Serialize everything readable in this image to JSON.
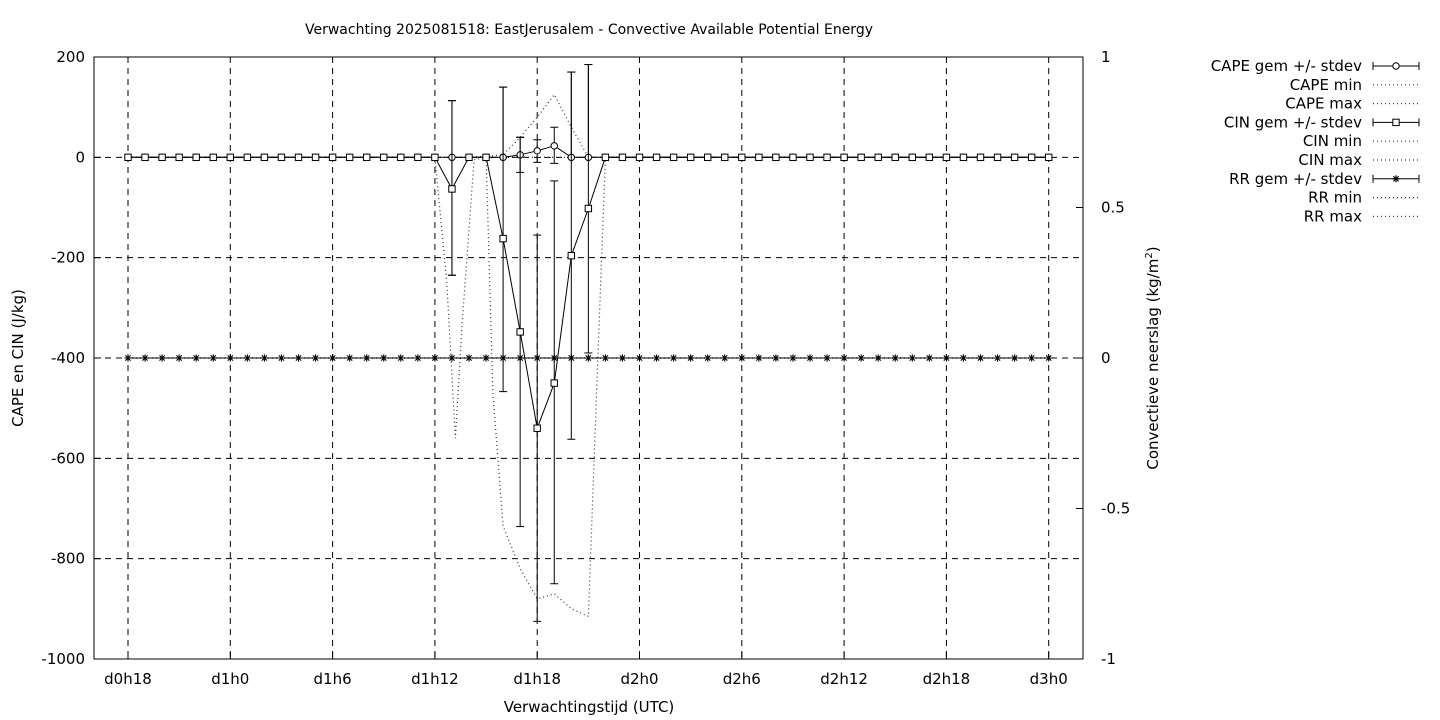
{
  "chart_data": {
    "type": "line",
    "title": "Verwachting 2025081518: EastJerusalem - Convective Available Potential Energy",
    "xlabel": "Verwachtingstijd (UTC)",
    "ylabel": "CAPE en CIN (J/kg)",
    "y2label_main": "Convectieve neerslag (kg/m",
    "y2label_sup": "2",
    "y2label_end": ")",
    "x_unit": "forecast hour (lead time from d0h18)",
    "xlim": [
      -2,
      56
    ],
    "ylim": [
      -1000,
      200
    ],
    "y2lim": [
      -1,
      1
    ],
    "grid": true,
    "legend_position": "outside-right",
    "x_ticks": [
      {
        "x": 0,
        "label": "d0h18"
      },
      {
        "x": 6,
        "label": "d1h0"
      },
      {
        "x": 12,
        "label": "d1h6"
      },
      {
        "x": 18,
        "label": "d1h12"
      },
      {
        "x": 24,
        "label": "d1h18"
      },
      {
        "x": 30,
        "label": "d2h0"
      },
      {
        "x": 36,
        "label": "d2h6"
      },
      {
        "x": 42,
        "label": "d2h12"
      },
      {
        "x": 48,
        "label": "d2h18"
      },
      {
        "x": 54,
        "label": "d3h0"
      }
    ],
    "y_ticks": [
      200,
      0,
      -200,
      -400,
      -600,
      -800,
      -1000
    ],
    "y2_ticks": [
      {
        "v": 1,
        "label": "1"
      },
      {
        "v": 0.5,
        "label": "0.5"
      },
      {
        "v": 0,
        "label": "0"
      },
      {
        "v": -0.5,
        "label": "-0.5"
      },
      {
        "v": -1,
        "label": "-1"
      }
    ],
    "x_hours": [
      0,
      1,
      2,
      3,
      4,
      5,
      6,
      7,
      8,
      9,
      10,
      11,
      12,
      13,
      14,
      15,
      16,
      17,
      18,
      19,
      20,
      21,
      22,
      23,
      24,
      25,
      26,
      27,
      28,
      29,
      30,
      31,
      32,
      33,
      34,
      35,
      36,
      37,
      38,
      39,
      40,
      41,
      42,
      43,
      44,
      45,
      46,
      47,
      48,
      49,
      50,
      51,
      52,
      53,
      54
    ],
    "series": [
      {
        "name": "CAPE gem +/- stdev",
        "marker": "circle",
        "axis": "y1",
        "err": [
          {
            "x": 19,
            "y": 0,
            "lo": -235,
            "hi": 113
          },
          {
            "x": 22,
            "y": 0,
            "lo": 0,
            "hi": 140
          },
          {
            "x": 23,
            "y": 5,
            "lo": -30,
            "hi": 40
          },
          {
            "x": 24,
            "y": 13,
            "lo": -10,
            "hi": 35
          },
          {
            "x": 25,
            "y": 23,
            "lo": -12,
            "hi": 60
          },
          {
            "x": 26,
            "y": 0,
            "lo": 0,
            "hi": 170
          },
          {
            "x": 27,
            "y": 0,
            "lo": 0,
            "hi": 185
          }
        ]
      },
      {
        "name": "CAPE min",
        "axis": "y1",
        "line": [
          [
            0,
            0
          ],
          [
            18,
            0
          ],
          [
            19,
            0
          ],
          [
            20,
            0
          ],
          [
            21,
            0
          ],
          [
            22,
            0
          ],
          [
            23,
            0
          ],
          [
            24,
            0
          ],
          [
            25,
            0
          ],
          [
            26,
            0
          ],
          [
            27,
            0
          ],
          [
            28,
            0
          ],
          [
            54,
            0
          ]
        ]
      },
      {
        "name": "CAPE max",
        "axis": "y1",
        "line": [
          [
            0,
            0
          ],
          [
            18,
            0
          ],
          [
            20,
            0
          ],
          [
            22,
            5
          ],
          [
            23,
            40
          ],
          [
            24,
            80
          ],
          [
            25,
            125
          ],
          [
            26,
            60
          ],
          [
            27,
            0
          ],
          [
            28,
            0
          ],
          [
            54,
            0
          ]
        ]
      },
      {
        "name": "CIN gem +/- stdev",
        "marker": "square",
        "axis": "y1",
        "err": [
          {
            "x": 19,
            "y": -63,
            "lo": -235,
            "hi": 113
          },
          {
            "x": 22,
            "y": -162,
            "lo": -467,
            "hi": 140
          },
          {
            "x": 23,
            "y": -348,
            "lo": -736,
            "hi": 40
          },
          {
            "x": 24,
            "y": -540,
            "lo": -925,
            "hi": -155
          },
          {
            "x": 25,
            "y": -450,
            "lo": -850,
            "hi": -47
          },
          {
            "x": 26,
            "y": -196,
            "lo": -562,
            "hi": 170
          },
          {
            "x": 27,
            "y": -102,
            "lo": -390,
            "hi": 185
          }
        ]
      },
      {
        "name": "CIN min",
        "axis": "y1",
        "line": [
          [
            0,
            0
          ],
          [
            18,
            0
          ],
          [
            18.7,
            -250
          ],
          [
            19.2,
            -560
          ],
          [
            19.6,
            -330
          ],
          [
            20.3,
            -5
          ],
          [
            21,
            0
          ],
          [
            21.4,
            -470
          ],
          [
            22,
            -735
          ],
          [
            23,
            -820
          ],
          [
            24,
            -880
          ],
          [
            25,
            -870
          ],
          [
            26,
            -900
          ],
          [
            27,
            -915
          ],
          [
            27.5,
            -450
          ],
          [
            28,
            0
          ],
          [
            54,
            0
          ]
        ]
      },
      {
        "name": "CIN max",
        "axis": "y1",
        "line": [
          [
            0,
            0
          ],
          [
            18,
            0
          ],
          [
            19,
            0
          ],
          [
            20,
            0
          ],
          [
            21,
            0
          ],
          [
            22,
            0
          ],
          [
            23,
            0
          ],
          [
            24,
            0
          ],
          [
            25,
            0
          ],
          [
            26,
            0
          ],
          [
            27,
            0
          ],
          [
            28,
            0
          ],
          [
            54,
            0
          ]
        ]
      },
      {
        "name": "RR gem +/- stdev",
        "marker": "star",
        "axis": "y2",
        "value": 0
      },
      {
        "name": "RR min",
        "axis": "y2",
        "line": [
          [
            0,
            0
          ],
          [
            54,
            0
          ]
        ]
      },
      {
        "name": "RR max",
        "axis": "y2",
        "line": [
          [
            0,
            0
          ],
          [
            54,
            0
          ]
        ]
      }
    ]
  }
}
